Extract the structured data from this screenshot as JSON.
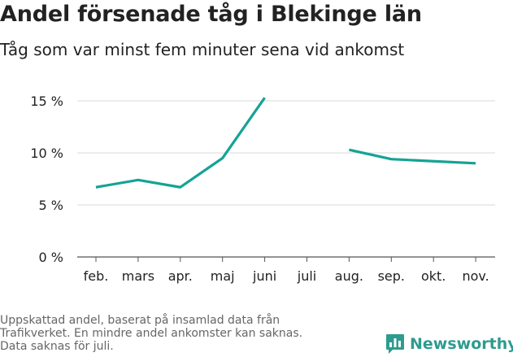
{
  "title": "Andel försenade tåg i Blekinge län",
  "subtitle": "Tåg som var minst fem minuter sena vid ankomst",
  "footnote": [
    "Uppskattad andel, baserat på insamlad data från",
    "Trafikverket. En mindre andel ankomster kan saknas.",
    "Data saknas för juli."
  ],
  "brand": {
    "name": "Newsworthy",
    "color": "#2e9b8f"
  },
  "chart_data": {
    "type": "line",
    "categories": [
      "feb.",
      "mars",
      "apr.",
      "maj",
      "juni",
      "juli",
      "aug.",
      "sep.",
      "okt.",
      "nov."
    ],
    "series": [
      {
        "values": [
          6.7,
          7.4,
          6.7,
          9.5,
          15.3,
          null,
          10.3,
          9.4,
          9.2,
          9.0
        ],
        "color": "#15a395"
      }
    ],
    "ylim": [
      0,
      15
    ],
    "yticks": [
      0,
      5,
      10,
      15
    ],
    "ytick_labels": [
      "0 %",
      "5 %",
      "10 %",
      "15 %"
    ],
    "grid": true,
    "xlabel": "",
    "ylabel": ""
  }
}
